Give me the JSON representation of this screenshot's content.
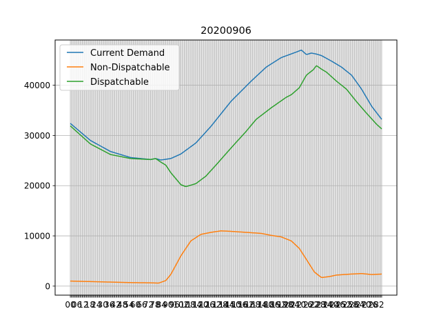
{
  "chart_data": {
    "type": "line",
    "title": "20200906",
    "xlabel": "",
    "ylabel": "",
    "x_count": 288,
    "xlim": [
      -14,
      301
    ],
    "ylim": [
      -1800,
      49000
    ],
    "y_ticks": [
      0,
      10000,
      20000,
      30000,
      40000
    ],
    "y_tick_labels": [
      "0",
      "10000",
      "20000",
      "30000",
      "40000"
    ],
    "x_tick_labels_note": "",
    "grid": true,
    "legend_position": "top-left",
    "series": [
      {
        "name": "Current Demand",
        "color": "#1f77b4",
        "keypoints": [
          [
            0,
            32400
          ],
          [
            20,
            29000
          ],
          [
            40,
            26800
          ],
          [
            60,
            25600
          ],
          [
            80,
            25200
          ],
          [
            85,
            25400
          ],
          [
            90,
            25100
          ],
          [
            100,
            25400
          ],
          [
            110,
            26300
          ],
          [
            125,
            28500
          ],
          [
            140,
            31800
          ],
          [
            160,
            36800
          ],
          [
            180,
            40800
          ],
          [
            195,
            43600
          ],
          [
            210,
            45500
          ],
          [
            225,
            46600
          ],
          [
            230,
            47000
          ],
          [
            235,
            46100
          ],
          [
            240,
            46400
          ],
          [
            245,
            46200
          ],
          [
            250,
            45900
          ],
          [
            260,
            44800
          ],
          [
            270,
            43600
          ],
          [
            280,
            42000
          ],
          [
            290,
            39200
          ],
          [
            300,
            35800
          ],
          [
            310,
            33200
          ]
        ]
      },
      {
        "name": "Non-Dispatchable",
        "color": "#ff7f0e",
        "keypoints": [
          [
            0,
            1000
          ],
          [
            20,
            900
          ],
          [
            40,
            800
          ],
          [
            60,
            700
          ],
          [
            80,
            650
          ],
          [
            88,
            600
          ],
          [
            95,
            1100
          ],
          [
            100,
            2300
          ],
          [
            110,
            6000
          ],
          [
            120,
            9000
          ],
          [
            130,
            10300
          ],
          [
            140,
            10700
          ],
          [
            150,
            11000
          ],
          [
            160,
            10900
          ],
          [
            175,
            10700
          ],
          [
            190,
            10500
          ],
          [
            200,
            10100
          ],
          [
            210,
            9800
          ],
          [
            220,
            9000
          ],
          [
            228,
            7500
          ],
          [
            236,
            5000
          ],
          [
            243,
            2800
          ],
          [
            250,
            1700
          ],
          [
            258,
            1900
          ],
          [
            265,
            2200
          ],
          [
            280,
            2400
          ],
          [
            290,
            2500
          ],
          [
            300,
            2300
          ],
          [
            310,
            2400
          ]
        ]
      },
      {
        "name": "Dispatchable",
        "color": "#2ca02c",
        "keypoints": [
          [
            0,
            31900
          ],
          [
            20,
            28300
          ],
          [
            40,
            26200
          ],
          [
            60,
            25400
          ],
          [
            80,
            25200
          ],
          [
            85,
            25400
          ],
          [
            90,
            24700
          ],
          [
            95,
            24100
          ],
          [
            100,
            22600
          ],
          [
            110,
            20200
          ],
          [
            115,
            19800
          ],
          [
            125,
            20400
          ],
          [
            135,
            21900
          ],
          [
            145,
            24100
          ],
          [
            160,
            27500
          ],
          [
            175,
            30800
          ],
          [
            185,
            33200
          ],
          [
            200,
            35500
          ],
          [
            215,
            37600
          ],
          [
            220,
            38100
          ],
          [
            228,
            39500
          ],
          [
            235,
            42000
          ],
          [
            242,
            43100
          ],
          [
            245,
            43900
          ],
          [
            250,
            43200
          ],
          [
            255,
            42600
          ],
          [
            265,
            40800
          ],
          [
            275,
            39200
          ],
          [
            285,
            36700
          ],
          [
            295,
            34400
          ],
          [
            305,
            32200
          ],
          [
            310,
            31300
          ]
        ]
      }
    ]
  }
}
